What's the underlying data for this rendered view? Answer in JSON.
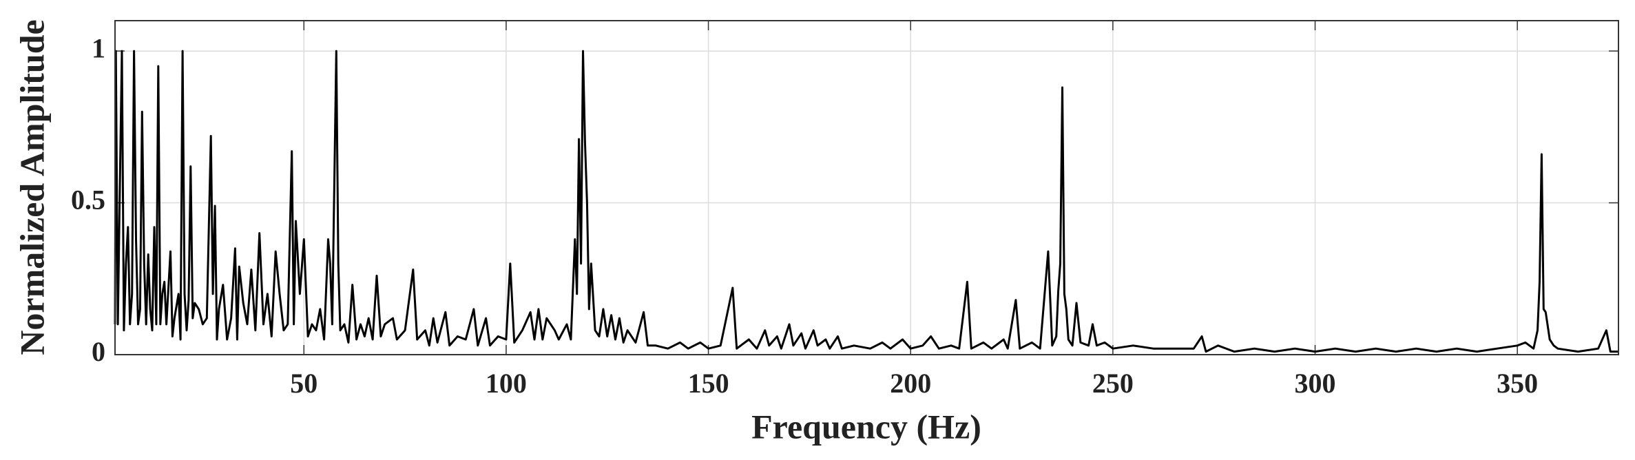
{
  "chart_data": {
    "type": "line",
    "xlabel": "Frequency (Hz)",
    "ylabel": "Normalized Amplitude",
    "xlim": [
      3.3,
      375
    ],
    "ylim": [
      0,
      1.1
    ],
    "xticks": [
      50,
      100,
      150,
      200,
      250,
      300,
      350
    ],
    "yticks": [
      0,
      0.5,
      1
    ],
    "grid": true,
    "series": [
      {
        "color": "#000000",
        "x": [
          3.3,
          3.5,
          4,
          4.5,
          5,
          5.5,
          6,
          6.5,
          7,
          7.5,
          8,
          8.5,
          9,
          9.5,
          10,
          10.5,
          11,
          11.5,
          12,
          12.5,
          13,
          13.5,
          14,
          14.5,
          15,
          15.5,
          16,
          17,
          17.5,
          18,
          19,
          19.5,
          20,
          20.5,
          21,
          21.5,
          22,
          22.5,
          23,
          24,
          25,
          26,
          27,
          27.5,
          28,
          28.5,
          29,
          30,
          31,
          32,
          33,
          33.5,
          34,
          35,
          36,
          37,
          38,
          39,
          40,
          41,
          42,
          43,
          44,
          45,
          46,
          47,
          47.5,
          48,
          49,
          50,
          51,
          52,
          53,
          54,
          55,
          56,
          56.5,
          57,
          58,
          58.5,
          59,
          60,
          61,
          62,
          63,
          64,
          65,
          66,
          67,
          68,
          69,
          70,
          72,
          73,
          75,
          77,
          78,
          80,
          81,
          82,
          83,
          85,
          86,
          88,
          90,
          92,
          93,
          95,
          96,
          98,
          100,
          101,
          102,
          104,
          106,
          107,
          108,
          109,
          110,
          112,
          113,
          115,
          116,
          117,
          117.5,
          118,
          118.5,
          119,
          119.5,
          120,
          120.5,
          121,
          122,
          123,
          124,
          125,
          126,
          127,
          128,
          129,
          130,
          132,
          134,
          135,
          137,
          140,
          143,
          145,
          148,
          150,
          153,
          156,
          157,
          160,
          162,
          164,
          165,
          167,
          168,
          170,
          171,
          173,
          174,
          176,
          177,
          179,
          180,
          182,
          183,
          186,
          190,
          193,
          195,
          198,
          200,
          203,
          205,
          207,
          210,
          212,
          214,
          215,
          218,
          220,
          223,
          224,
          226,
          227,
          230,
          232,
          234,
          235,
          236,
          236.5,
          237,
          237.5,
          238,
          238.5,
          239,
          240,
          241,
          242,
          244,
          245,
          246,
          248,
          250,
          255,
          260,
          265,
          270,
          272,
          273,
          276,
          280,
          285,
          290,
          295,
          300,
          305,
          310,
          315,
          320,
          325,
          330,
          335,
          340,
          345,
          350,
          352,
          354,
          355,
          355.5,
          356,
          356.5,
          357,
          358,
          359,
          360,
          365,
          370,
          372,
          373,
          375
        ],
        "values": [
          0.1,
          1.0,
          0.1,
          0.55,
          1.0,
          0.08,
          0.3,
          0.42,
          0.1,
          0.2,
          1.0,
          0.38,
          0.1,
          0.15,
          0.8,
          0.3,
          0.1,
          0.33,
          0.15,
          0.08,
          0.42,
          0.1,
          0.95,
          0.1,
          0.2,
          0.24,
          0.1,
          0.34,
          0.06,
          0.12,
          0.2,
          0.05,
          1.0,
          0.2,
          0.08,
          0.18,
          0.62,
          0.12,
          0.17,
          0.15,
          0.1,
          0.12,
          0.72,
          0.2,
          0.49,
          0.05,
          0.15,
          0.23,
          0.05,
          0.12,
          0.35,
          0.05,
          0.29,
          0.17,
          0.1,
          0.28,
          0.08,
          0.4,
          0.1,
          0.2,
          0.06,
          0.34,
          0.2,
          0.08,
          0.1,
          0.67,
          0.1,
          0.44,
          0.2,
          0.38,
          0.06,
          0.1,
          0.08,
          0.15,
          0.05,
          0.38,
          0.3,
          0.1,
          1.0,
          0.3,
          0.08,
          0.1,
          0.04,
          0.23,
          0.05,
          0.1,
          0.06,
          0.12,
          0.05,
          0.26,
          0.06,
          0.1,
          0.12,
          0.05,
          0.08,
          0.28,
          0.05,
          0.08,
          0.03,
          0.12,
          0.04,
          0.14,
          0.03,
          0.06,
          0.05,
          0.15,
          0.03,
          0.12,
          0.03,
          0.06,
          0.05,
          0.3,
          0.04,
          0.08,
          0.14,
          0.05,
          0.15,
          0.05,
          0.12,
          0.08,
          0.05,
          0.1,
          0.05,
          0.38,
          0.2,
          0.71,
          0.3,
          1.0,
          0.7,
          0.5,
          0.15,
          0.3,
          0.08,
          0.06,
          0.15,
          0.06,
          0.13,
          0.05,
          0.12,
          0.04,
          0.08,
          0.04,
          0.14,
          0.03,
          0.03,
          0.02,
          0.04,
          0.02,
          0.04,
          0.02,
          0.03,
          0.22,
          0.02,
          0.05,
          0.02,
          0.08,
          0.03,
          0.06,
          0.02,
          0.1,
          0.03,
          0.07,
          0.02,
          0.08,
          0.03,
          0.05,
          0.02,
          0.06,
          0.02,
          0.03,
          0.02,
          0.04,
          0.02,
          0.05,
          0.02,
          0.03,
          0.06,
          0.02,
          0.03,
          0.02,
          0.24,
          0.02,
          0.04,
          0.02,
          0.05,
          0.02,
          0.18,
          0.02,
          0.04,
          0.02,
          0.34,
          0.03,
          0.06,
          0.21,
          0.3,
          0.88,
          0.2,
          0.15,
          0.05,
          0.03,
          0.17,
          0.04,
          0.03,
          0.1,
          0.03,
          0.04,
          0.02,
          0.03,
          0.02,
          0.02,
          0.02,
          0.06,
          0.01,
          0.03,
          0.01,
          0.02,
          0.01,
          0.02,
          0.01,
          0.02,
          0.01,
          0.02,
          0.01,
          0.02,
          0.01,
          0.02,
          0.01,
          0.02,
          0.03,
          0.04,
          0.02,
          0.08,
          0.24,
          0.66,
          0.15,
          0.14,
          0.05,
          0.03,
          0.02,
          0.01,
          0.02,
          0.08,
          0.01,
          0.01
        ]
      }
    ]
  }
}
